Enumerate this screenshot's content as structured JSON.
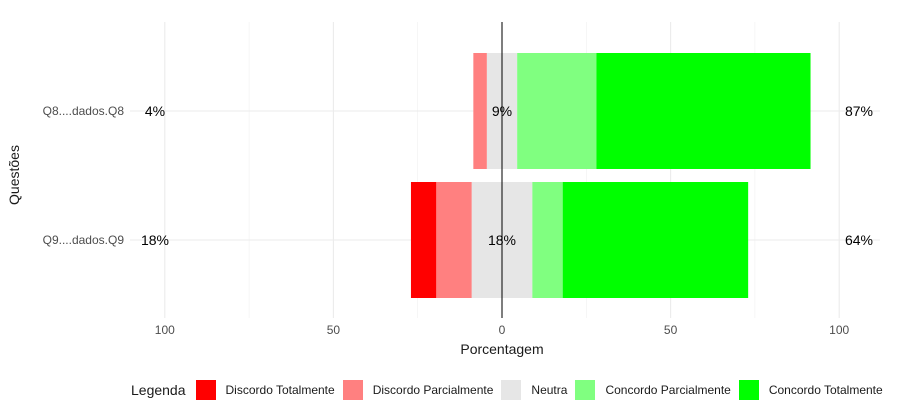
{
  "chart_data": {
    "type": "bar",
    "orientation": "horizontal-diverging",
    "xlabel": "Porcentagem",
    "ylabel": "Questões",
    "xlim": [
      -100,
      100
    ],
    "xticks": [
      -100,
      -50,
      0,
      50,
      100
    ],
    "xtick_labels": [
      "100",
      "50",
      "0",
      "50",
      "100"
    ],
    "categories": [
      "Q8....dados.Q8",
      "Q9....dados.Q9"
    ],
    "series": [
      {
        "name": "Discordo Totalmente",
        "color": "#ff0000",
        "values": [
          0,
          7.5
        ]
      },
      {
        "name": "Discordo Parcialmente",
        "color": "#ff8080",
        "values": [
          4,
          10.5
        ]
      },
      {
        "name": "Neutra",
        "color": "#e6e6e6",
        "values": [
          9,
          18
        ]
      },
      {
        "name": "Concordo Parcialmente",
        "color": "#80ff80",
        "values": [
          23.5,
          9
        ]
      },
      {
        "name": "Concordo Totalmente",
        "color": "#00ff00",
        "values": [
          63.5,
          55
        ]
      }
    ],
    "annotations": {
      "left": [
        "4%",
        "18%"
      ],
      "center": [
        "9%",
        "18%"
      ],
      "right": [
        "87%",
        "64%"
      ]
    },
    "grid": true,
    "legend": {
      "title": "Legenda",
      "position": "bottom"
    }
  }
}
